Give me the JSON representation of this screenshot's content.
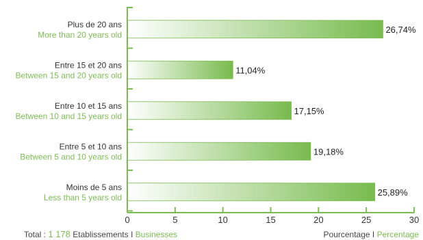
{
  "chart_data": {
    "type": "bar",
    "orientation": "horizontal",
    "categories": [
      {
        "fr": "Plus de 20 ans",
        "en": "More than 20 years old"
      },
      {
        "fr": "Entre 15 et 20 ans",
        "en": "Between 15 and 20 years old"
      },
      {
        "fr": "Entre 10 et 15 ans",
        "en": "Between 10 and 15 years old"
      },
      {
        "fr": "Entre 5 et 10 ans",
        "en": "Between 5 and 10 years old"
      },
      {
        "fr": "Moins de 5 ans",
        "en": "Less than 5 years old"
      }
    ],
    "values": [
      26.74,
      11.04,
      17.15,
      19.18,
      25.89
    ],
    "value_labels": [
      "26,74%",
      "11,04%",
      "17,15%",
      "19,18%",
      "25,89%"
    ],
    "xlim": [
      0,
      30
    ],
    "xticks": [
      0,
      5,
      10,
      15,
      20,
      25,
      30
    ],
    "grid": false,
    "colors": {
      "bar_start": "#ffffff",
      "bar_end": "#78bb4e",
      "axis": "#7cbd52",
      "label_fr": "#333333",
      "label_en": "#7cbd52"
    }
  },
  "footer": {
    "total_prefix": "Total :",
    "total_count": "1 178",
    "total_label_fr": "Etablissements",
    "separator": "I",
    "total_label_en": "Businesses",
    "unit_fr": "Pourcentage",
    "unit_en": "Percentage"
  }
}
